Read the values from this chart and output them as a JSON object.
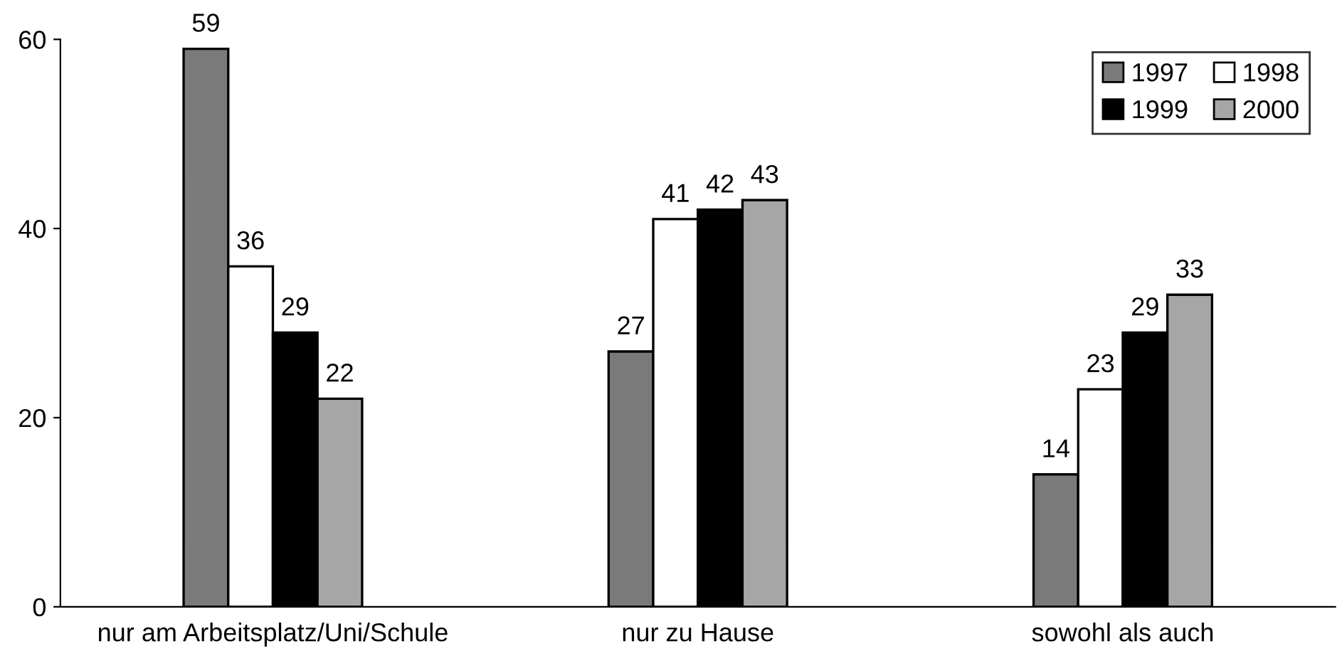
{
  "chart_data": {
    "type": "bar",
    "categories": [
      "nur am Arbeitsplatz/Uni/Schule",
      "nur zu Hause",
      "sowohl als auch"
    ],
    "series": [
      {
        "name": "1997",
        "color": "#7a7a7a",
        "values": [
          59,
          27,
          14
        ]
      },
      {
        "name": "1998",
        "color": "#ffffff",
        "values": [
          36,
          41,
          23
        ]
      },
      {
        "name": "1999",
        "color": "#000000",
        "values": [
          29,
          42,
          29
        ]
      },
      {
        "name": "2000",
        "color": "#a6a6a6",
        "values": [
          22,
          43,
          33
        ]
      }
    ],
    "ylim": [
      0,
      60
    ],
    "yticks": [
      0,
      20,
      40,
      60
    ],
    "data_labels": true,
    "legend": "top right",
    "grid": false
  }
}
